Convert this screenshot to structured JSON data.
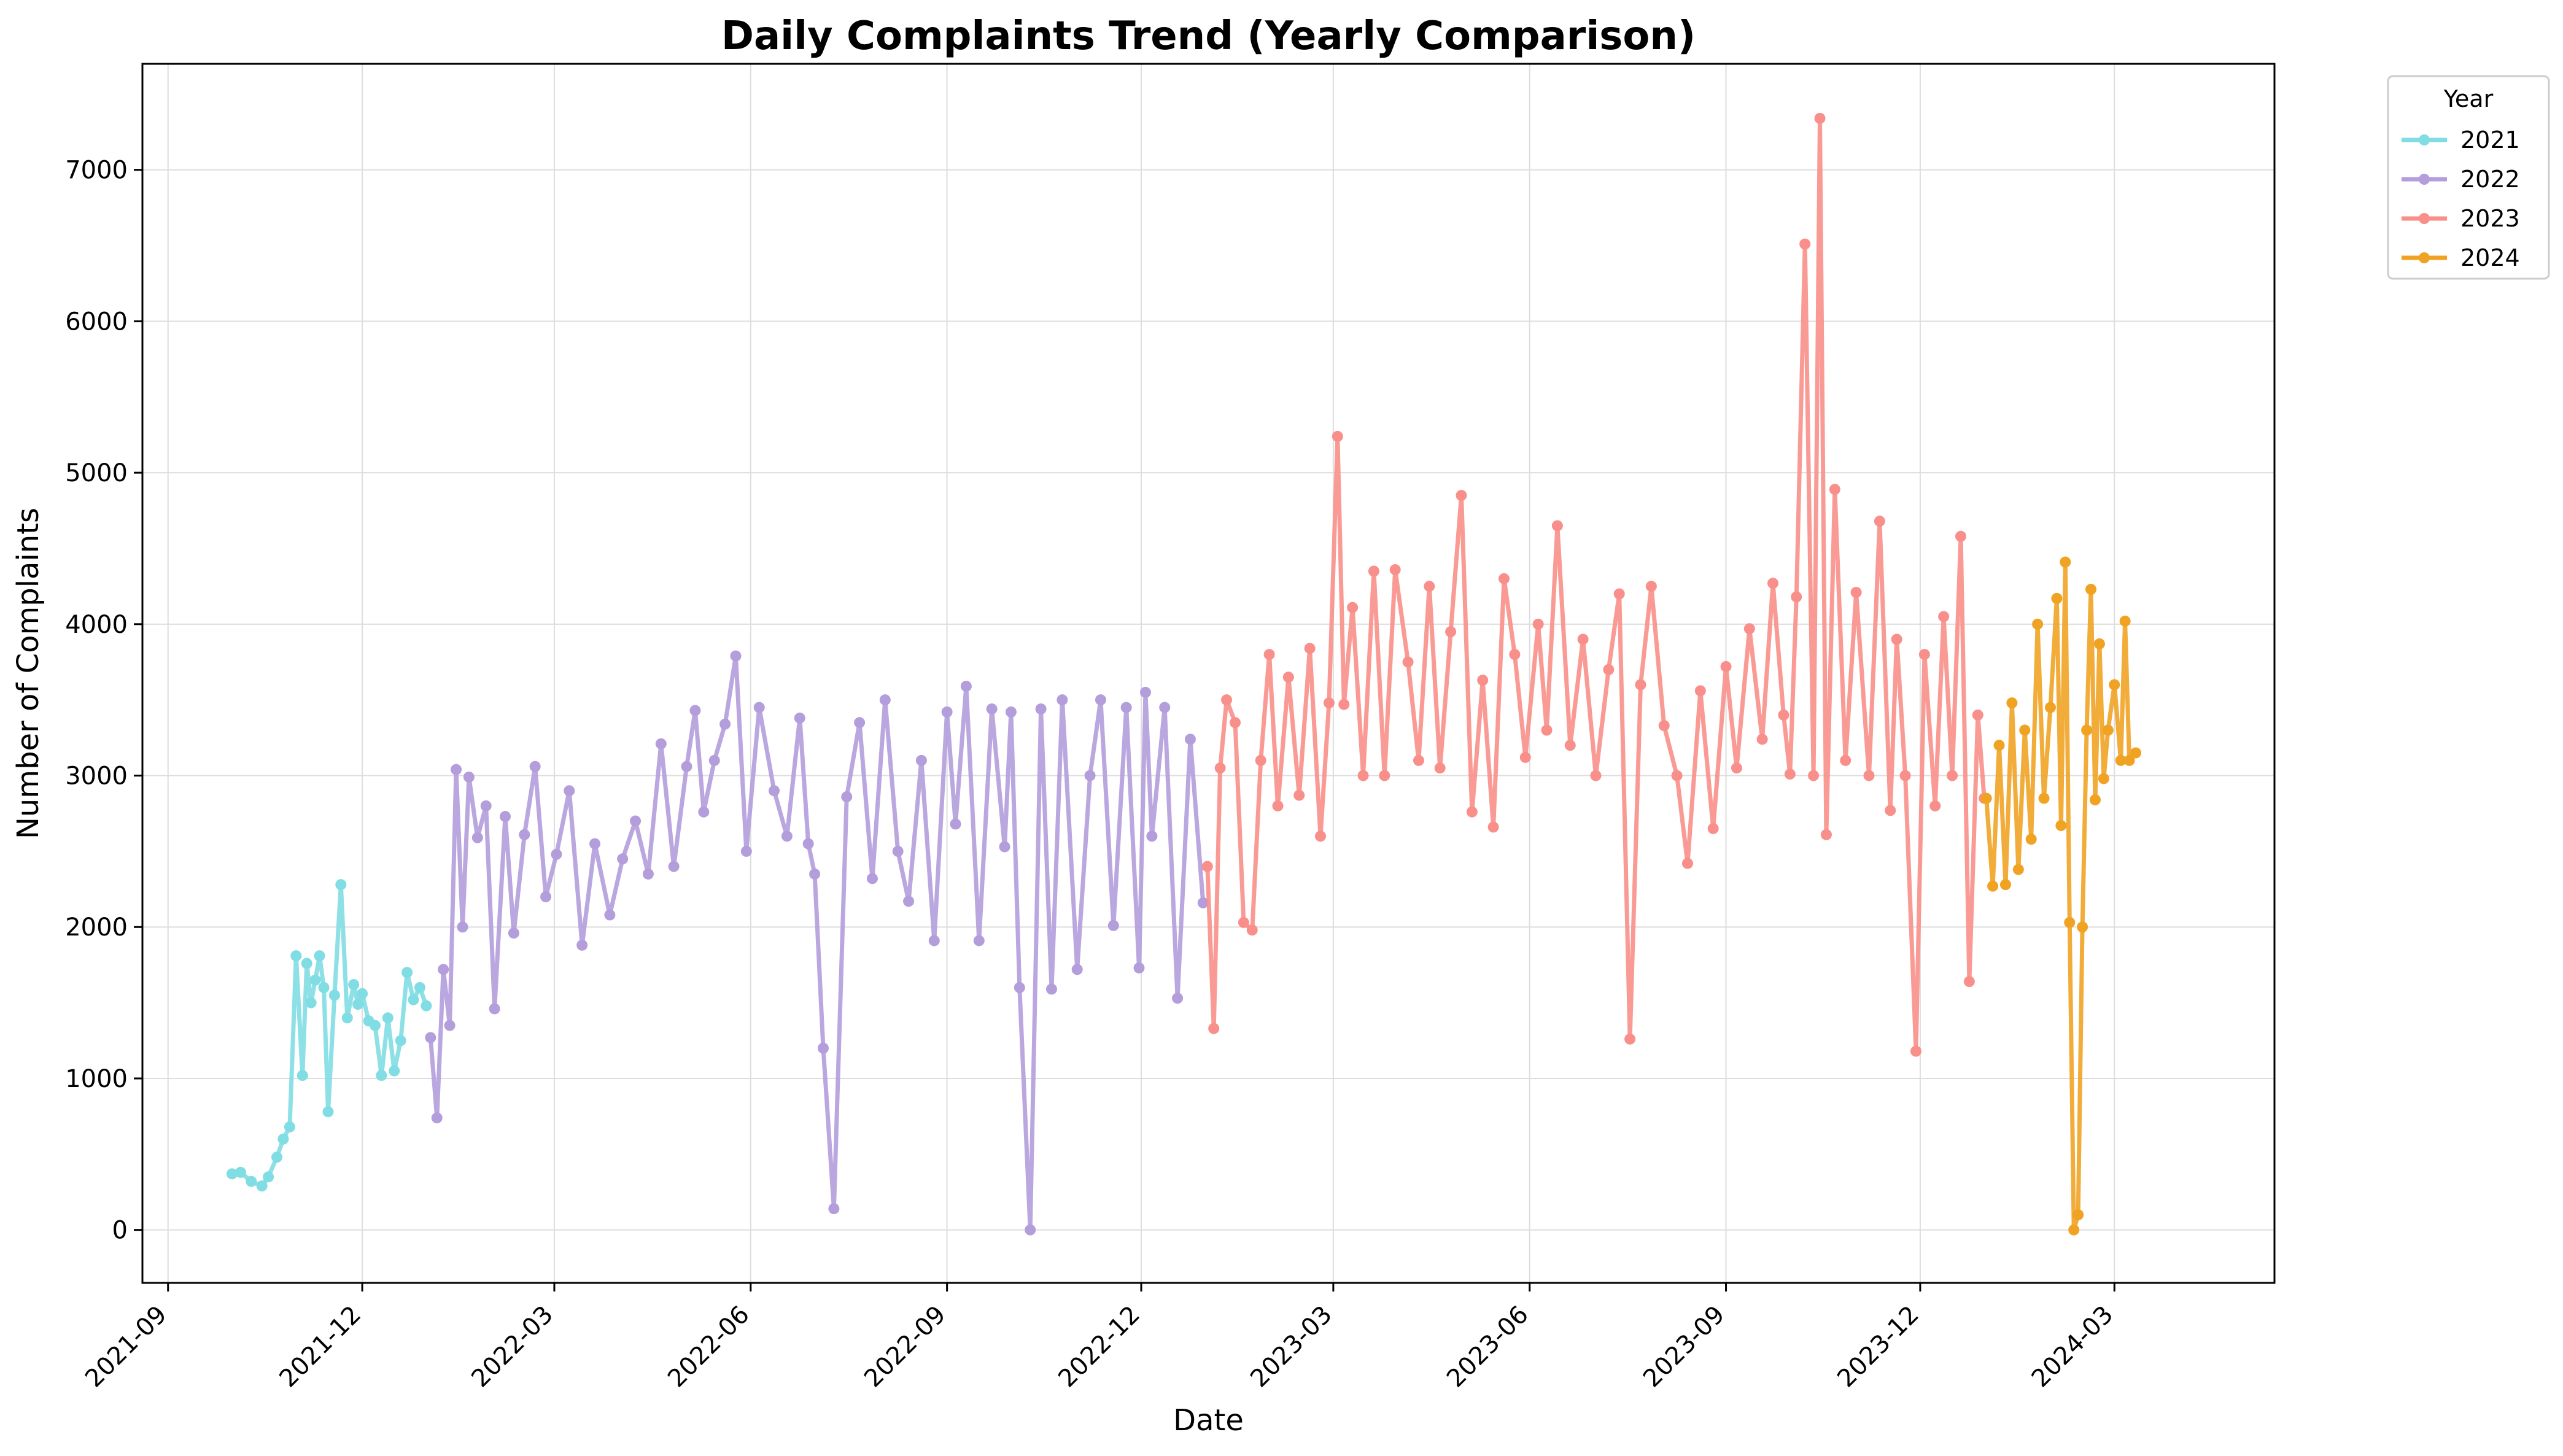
{
  "chart_data": {
    "type": "line",
    "title": "Daily Complaints Trend (Yearly Comparison)",
    "xlabel": "Date",
    "ylabel": "Number of Complaints",
    "xlim": [
      "2021-08-20",
      "2024-05-15"
    ],
    "ylim": [
      -350,
      7700
    ],
    "grid": true,
    "legend_title": "Year",
    "legend_position": "outside-top-right",
    "x_ticks": [
      "2021-09",
      "2021-12",
      "2022-03",
      "2022-06",
      "2022-09",
      "2022-12",
      "2023-03",
      "2023-06",
      "2023-09",
      "2023-12",
      "2024-03"
    ],
    "y_ticks": [
      0,
      1000,
      2000,
      3000,
      4000,
      5000,
      6000,
      7000
    ],
    "series": [
      {
        "name": "2021",
        "color": "#7fdde3",
        "x": [
          "2021-10-01",
          "2021-10-05",
          "2021-10-10",
          "2021-10-15",
          "2021-10-18",
          "2021-10-22",
          "2021-10-25",
          "2021-10-28",
          "2021-10-31",
          "2021-11-03",
          "2021-11-05",
          "2021-11-07",
          "2021-11-09",
          "2021-11-11",
          "2021-11-13",
          "2021-11-15",
          "2021-11-18",
          "2021-11-21",
          "2021-11-24",
          "2021-11-27",
          "2021-11-29",
          "2021-12-01",
          "2021-12-04",
          "2021-12-07",
          "2021-12-10",
          "2021-12-13",
          "2021-12-16",
          "2021-12-19",
          "2021-12-22",
          "2021-12-25",
          "2021-12-28",
          "2021-12-31"
        ],
        "values": [
          370,
          380,
          320,
          290,
          350,
          480,
          600,
          680,
          1810,
          1020,
          1760,
          1500,
          1650,
          1810,
          1600,
          780,
          1550,
          2280,
          1400,
          1620,
          1490,
          1560,
          1380,
          1350,
          1020,
          1400,
          1050,
          1250,
          1700,
          1520,
          1600,
          1480
        ]
      },
      {
        "name": "2022",
        "color": "#b39ddb",
        "x": [
          "2022-01-02",
          "2022-01-05",
          "2022-01-08",
          "2022-01-11",
          "2022-01-14",
          "2022-01-17",
          "2022-01-20",
          "2022-01-24",
          "2022-01-28",
          "2022-02-01",
          "2022-02-06",
          "2022-02-10",
          "2022-02-15",
          "2022-02-20",
          "2022-02-25",
          "2022-03-02",
          "2022-03-08",
          "2022-03-14",
          "2022-03-20",
          "2022-03-27",
          "2022-04-02",
          "2022-04-08",
          "2022-04-14",
          "2022-04-20",
          "2022-04-26",
          "2022-05-02",
          "2022-05-06",
          "2022-05-10",
          "2022-05-15",
          "2022-05-20",
          "2022-05-25",
          "2022-05-30",
          "2022-06-05",
          "2022-06-12",
          "2022-06-18",
          "2022-06-24",
          "2022-06-28",
          "2022-07-01",
          "2022-07-05",
          "2022-07-10",
          "2022-07-16",
          "2022-07-22",
          "2022-07-28",
          "2022-08-03",
          "2022-08-09",
          "2022-08-14",
          "2022-08-20",
          "2022-08-26",
          "2022-09-01",
          "2022-09-05",
          "2022-09-10",
          "2022-09-16",
          "2022-09-22",
          "2022-09-28",
          "2022-10-01",
          "2022-10-05",
          "2022-10-10",
          "2022-10-15",
          "2022-10-20",
          "2022-10-25",
          "2022-11-01",
          "2022-11-07",
          "2022-11-12",
          "2022-11-18",
          "2022-11-24",
          "2022-11-30",
          "2022-12-03",
          "2022-12-06",
          "2022-12-12",
          "2022-12-18",
          "2022-12-24",
          "2022-12-30"
        ],
        "values": [
          1270,
          740,
          1720,
          1350,
          3040,
          2000,
          2990,
          2590,
          2800,
          1460,
          2730,
          1960,
          2610,
          3060,
          2200,
          2480,
          2900,
          1880,
          2550,
          2080,
          2450,
          2700,
          2350,
          3210,
          2400,
          3060,
          3430,
          2760,
          3100,
          3340,
          3790,
          2500,
          3450,
          2900,
          2600,
          3380,
          2550,
          2350,
          1200,
          140,
          2860,
          3350,
          2320,
          3500,
          2500,
          2170,
          3100,
          1910,
          3420,
          2680,
          3590,
          1910,
          3440,
          2530,
          3420,
          1600,
          0,
          3440,
          1590,
          3500,
          1720,
          3000,
          3500,
          2010,
          3450,
          1730,
          3550,
          2600,
          3450,
          1530,
          3240,
          2160
        ]
      },
      {
        "name": "2023",
        "color": "#f98f8a",
        "x": [
          "2023-01-01",
          "2023-01-04",
          "2023-01-07",
          "2023-01-10",
          "2023-01-14",
          "2023-01-18",
          "2023-01-22",
          "2023-01-26",
          "2023-01-30",
          "2023-02-03",
          "2023-02-08",
          "2023-02-13",
          "2023-02-18",
          "2023-02-23",
          "2023-02-27",
          "2023-03-03",
          "2023-03-06",
          "2023-03-10",
          "2023-03-15",
          "2023-03-20",
          "2023-03-25",
          "2023-03-30",
          "2023-04-05",
          "2023-04-10",
          "2023-04-15",
          "2023-04-20",
          "2023-04-25",
          "2023-04-30",
          "2023-05-05",
          "2023-05-10",
          "2023-05-15",
          "2023-05-20",
          "2023-05-25",
          "2023-05-30",
          "2023-06-05",
          "2023-06-09",
          "2023-06-14",
          "2023-06-20",
          "2023-06-26",
          "2023-07-02",
          "2023-07-08",
          "2023-07-13",
          "2023-07-18",
          "2023-07-23",
          "2023-07-28",
          "2023-08-03",
          "2023-08-09",
          "2023-08-14",
          "2023-08-20",
          "2023-08-26",
          "2023-09-01",
          "2023-09-06",
          "2023-09-12",
          "2023-09-18",
          "2023-09-23",
          "2023-09-28",
          "2023-10-01",
          "2023-10-04",
          "2023-10-08",
          "2023-10-12",
          "2023-10-15",
          "2023-10-18",
          "2023-10-22",
          "2023-10-27",
          "2023-11-01",
          "2023-11-07",
          "2023-11-12",
          "2023-11-17",
          "2023-11-20",
          "2023-11-24",
          "2023-11-29",
          "2023-12-03",
          "2023-12-08",
          "2023-12-12",
          "2023-12-16",
          "2023-12-20",
          "2023-12-24",
          "2023-12-28",
          "2023-12-31"
        ],
        "values": [
          2400,
          1330,
          3050,
          3500,
          3350,
          2030,
          1980,
          3100,
          3800,
          2800,
          3650,
          2870,
          3840,
          2600,
          3480,
          5240,
          3470,
          4110,
          3000,
          4350,
          3000,
          4360,
          3750,
          3100,
          4250,
          3050,
          3950,
          4850,
          2760,
          3630,
          2660,
          4300,
          3800,
          3120,
          4000,
          3300,
          4650,
          3200,
          3900,
          3000,
          3700,
          4200,
          1260,
          3600,
          4250,
          3330,
          3000,
          2420,
          3560,
          2650,
          3720,
          3050,
          3970,
          3240,
          4270,
          3400,
          3010,
          4180,
          6510,
          3000,
          7340,
          2610,
          4890,
          3100,
          4210,
          3000,
          4680,
          2770,
          3900,
          3000,
          1180,
          3800,
          2800,
          4050,
          3000,
          4580,
          1640,
          3400,
          2850
        ]
      },
      {
        "name": "2024",
        "color": "#f0a323",
        "x": [
          "2024-01-01",
          "2024-01-04",
          "2024-01-07",
          "2024-01-10",
          "2024-01-13",
          "2024-01-16",
          "2024-01-19",
          "2024-01-22",
          "2024-01-25",
          "2024-01-28",
          "2024-01-31",
          "2024-02-03",
          "2024-02-05",
          "2024-02-07",
          "2024-02-09",
          "2024-02-11",
          "2024-02-13",
          "2024-02-15",
          "2024-02-17",
          "2024-02-19",
          "2024-02-21",
          "2024-02-23",
          "2024-02-25",
          "2024-02-27",
          "2024-03-01",
          "2024-03-04",
          "2024-03-06",
          "2024-03-08",
          "2024-03-11"
        ],
        "values": [
          2850,
          2270,
          3200,
          2280,
          3480,
          2380,
          3300,
          2580,
          4000,
          2850,
          3450,
          4170,
          2670,
          4410,
          2030,
          0,
          100,
          2000,
          3300,
          4230,
          2840,
          3870,
          2980,
          3300,
          3600,
          3100,
          4020,
          3100,
          3150
        ]
      }
    ]
  }
}
